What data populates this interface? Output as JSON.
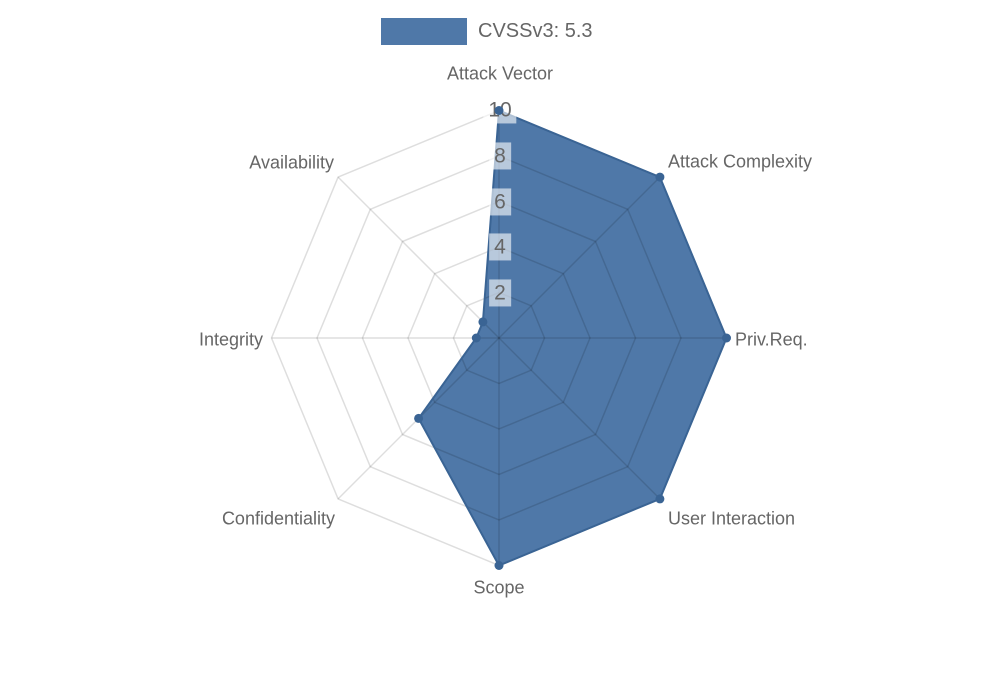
{
  "legend": {
    "label": "CVSSv3: 5.3",
    "swatch_color": "#4F78A8"
  },
  "chart_data": {
    "type": "radar",
    "title": "CVSSv3: 5.3",
    "categories": [
      "Attack Vector",
      "Attack Complexity",
      "Priv.Req.",
      "User Interaction",
      "Scope",
      "Confidentiality",
      "Integrity",
      "Availability"
    ],
    "series": [
      {
        "name": "CVSSv3: 5.3",
        "values": [
          10,
          10,
          10,
          10,
          10,
          5,
          1,
          1
        ]
      }
    ],
    "ticks": [
      2,
      4,
      6,
      8,
      10
    ],
    "rmin": 0,
    "rmax": 10,
    "grid": "polygon-web",
    "grid_color": "rgba(0,0,0,0.13)",
    "legend_position": "top",
    "fill_color": "#4F78A8",
    "border_color": "#3A6494",
    "point_color": "#3A6494",
    "label_color": "#666666",
    "tick_backdrop_color": "rgba(255,255,255,0.6)"
  }
}
